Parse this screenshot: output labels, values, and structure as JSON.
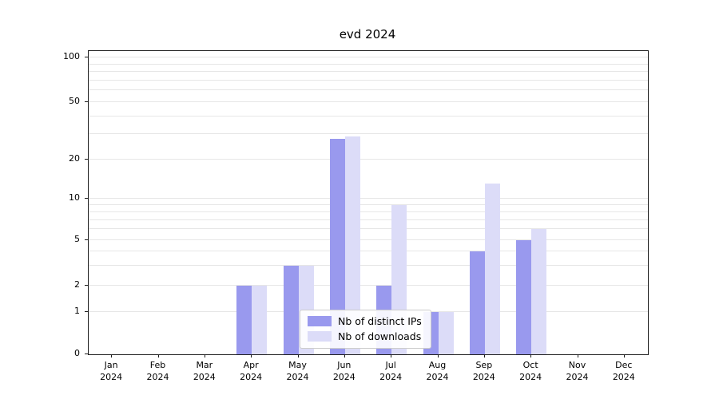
{
  "chart_data": {
    "type": "bar",
    "title": "evd 2024",
    "categories": [
      "Jan 2024",
      "Feb 2024",
      "Mar 2024",
      "Apr 2024",
      "May 2024",
      "Jun 2024",
      "Jul 2024",
      "Aug 2024",
      "Sep 2024",
      "Oct 2024",
      "Nov 2024",
      "Dec 2024"
    ],
    "series": [
      {
        "name": "Nb of distinct IPs",
        "color": "#9999ee",
        "values": [
          0,
          0,
          0,
          2,
          3,
          28,
          2,
          1,
          4,
          5,
          0,
          0
        ]
      },
      {
        "name": "Nb of downloads",
        "color": "#dcdcf8",
        "values": [
          0,
          0,
          0,
          2,
          3,
          29,
          9,
          1,
          13,
          6,
          0,
          0
        ]
      }
    ],
    "yticks": [
      0,
      1,
      2,
      5,
      10,
      20,
      50,
      100
    ],
    "minor_gridlines": [
      1,
      2,
      3,
      4,
      5,
      6,
      7,
      8,
      9,
      10,
      20,
      30,
      40,
      50,
      60,
      70,
      80,
      90,
      100
    ],
    "ylim": [
      0,
      100
    ],
    "yscale": "log-like",
    "grid": "on",
    "legend_position": "lower center"
  }
}
